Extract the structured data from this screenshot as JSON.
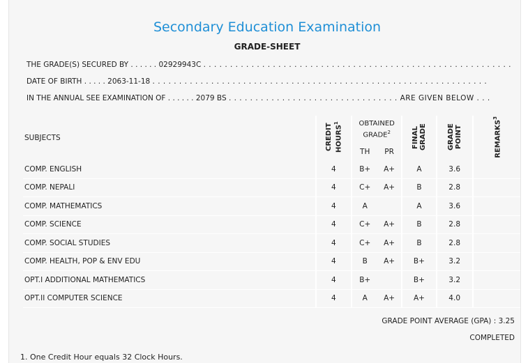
{
  "header": {
    "title": "Secondary Education Examination",
    "subtitle": "GRADE-SHEET"
  },
  "info": {
    "line1_prefix": "THE GRADE(S) SECURED BY . . . . . .",
    "symbol_no": "02929943C",
    "line1_suffix": ". . . . . . . . . . . . . . . . . . . . . . . . . . . . . . . . . . . . . . . . . . . . . . . . . . . . . . . . . .",
    "line2_prefix": "DATE OF BIRTH . . . . .",
    "dob": "2063-11-18",
    "line2_suffix": ". . . . . . . . . . . . . . . . . . . . . . . . . . . . . . . . . . . . . . . . . . . . . . . . . . . . . . . . . . . . . . .",
    "line3_prefix": "IN THE ANNUAL SEE EXAMINATION OF . . . . . .",
    "year": "2079 BS",
    "line3_suffix": ". . . . . . . . . . . . . . . . . . . . . . . . . . . . . . . . ARE GIVEN BELOW . . ."
  },
  "table": {
    "col_subjects": "SUBJECTS",
    "col_credit": "CREDIT HOURS",
    "col_credit_sup": "1",
    "col_obtained": "OBTAINED GRADE",
    "col_obtained_sup": "2",
    "col_th": "TH",
    "col_pr": "PR",
    "col_final": "FINAL GRADE",
    "col_gp": "GRADE POINT",
    "col_remarks": "REMARKS",
    "col_remarks_sup": "3",
    "rows": [
      {
        "subject": "COMP. ENGLISH",
        "credit": "4",
        "th": "B+",
        "pr": "A+",
        "final": "A",
        "gp": "3.6",
        "remarks": ""
      },
      {
        "subject": "COMP. NEPALI",
        "credit": "4",
        "th": "C+",
        "pr": "A+",
        "final": "B",
        "gp": "2.8",
        "remarks": ""
      },
      {
        "subject": "COMP. MATHEMATICS",
        "credit": "4",
        "th": "A",
        "pr": "",
        "final": "A",
        "gp": "3.6",
        "remarks": ""
      },
      {
        "subject": "COMP. SCIENCE",
        "credit": "4",
        "th": "C+",
        "pr": "A+",
        "final": "B",
        "gp": "2.8",
        "remarks": ""
      },
      {
        "subject": "COMP. SOCIAL STUDIES",
        "credit": "4",
        "th": "C+",
        "pr": "A+",
        "final": "B",
        "gp": "2.8",
        "remarks": ""
      },
      {
        "subject": "COMP. HEALTH, POP & ENV EDU",
        "credit": "4",
        "th": "B",
        "pr": "A+",
        "final": "B+",
        "gp": "3.2",
        "remarks": ""
      },
      {
        "subject": "OPT.I ADDITIONAL MATHEMATICS",
        "credit": "4",
        "th": "B+",
        "pr": "",
        "final": "B+",
        "gp": "3.2",
        "remarks": ""
      },
      {
        "subject": "OPT.II COMPUTER SCIENCE",
        "credit": "4",
        "th": "A",
        "pr": "A+",
        "final": "A+",
        "gp": "4.0",
        "remarks": ""
      }
    ]
  },
  "summary": {
    "gpa_label": "GRADE POINT AVERAGE (GPA) : 3.25",
    "status": "COMPLETED"
  },
  "footnote": "1. One Credit Hour equals 32 Clock Hours."
}
